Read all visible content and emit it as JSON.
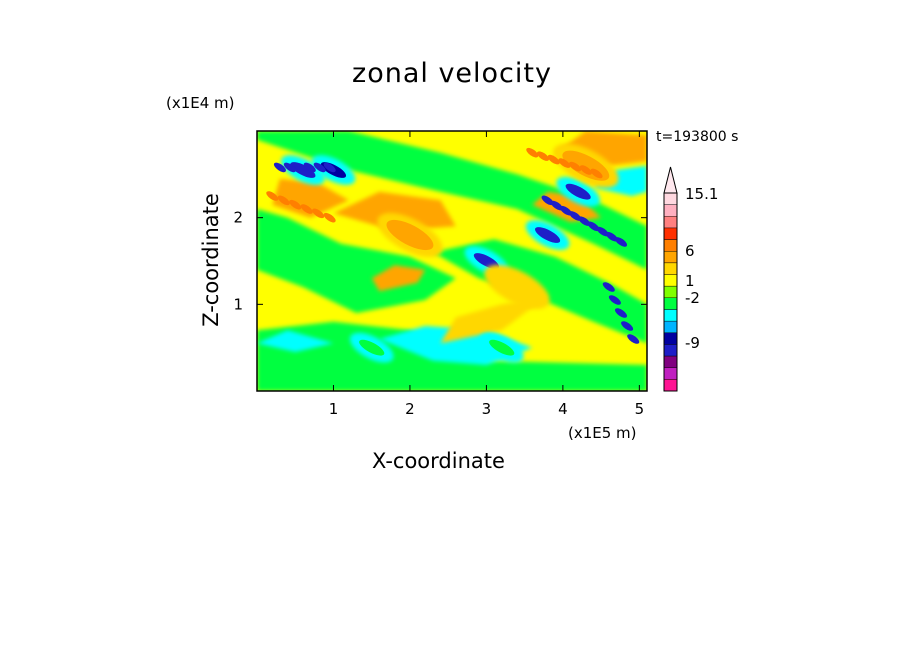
{
  "chart_data": {
    "type": "heatmap",
    "title": "zonal velocity",
    "xlabel": "X-coordinate",
    "ylabel": "Z-coordinate",
    "x_unit": "(x1E5 m)",
    "y_unit": "(x1E4 m)",
    "time_label": "t=193800 s",
    "xlim": [
      0,
      5.1
    ],
    "ylim": [
      0,
      3.0
    ],
    "x_ticks": [
      "1",
      "2",
      "3",
      "4",
      "5"
    ],
    "y_ticks": [
      "1",
      "2"
    ],
    "colorbar": {
      "labels": [
        "15.1",
        "6",
        "1",
        "-2",
        "-9"
      ],
      "colors": [
        "#ff1493",
        "#c020c0",
        "#800080",
        "#1e1ec8",
        "#0000a0",
        "#00b4ff",
        "#00ffff",
        "#00ff40",
        "#80ff00",
        "#ffff00",
        "#ffd700",
        "#ffa500",
        "#ff7f00",
        "#ff3000",
        "#ff8080",
        "#ffb0c0",
        "#ffd8e0"
      ]
    },
    "field": {
      "description_levels": "contour levels from about -15 (magenta) to 15.1 (pink), dominant values between -2 and 6",
      "features": [
        {
          "x": 0.6,
          "z": 2.55,
          "value": -9
        },
        {
          "x": 1.0,
          "z": 2.55,
          "value": -7
        },
        {
          "x": 3.0,
          "z": 1.5,
          "value": -8
        },
        {
          "x": 3.8,
          "z": 1.8,
          "value": -9
        },
        {
          "x": 4.2,
          "z": 2.3,
          "value": -9
        },
        {
          "x": 2.0,
          "z": 1.8,
          "value": 5
        },
        {
          "x": 3.4,
          "z": 1.2,
          "value": 4
        },
        {
          "x": 4.3,
          "z": 2.6,
          "value": 6
        },
        {
          "x": 1.5,
          "z": 0.5,
          "value": -1
        },
        {
          "x": 3.2,
          "z": 0.5,
          "value": -1
        }
      ]
    }
  }
}
